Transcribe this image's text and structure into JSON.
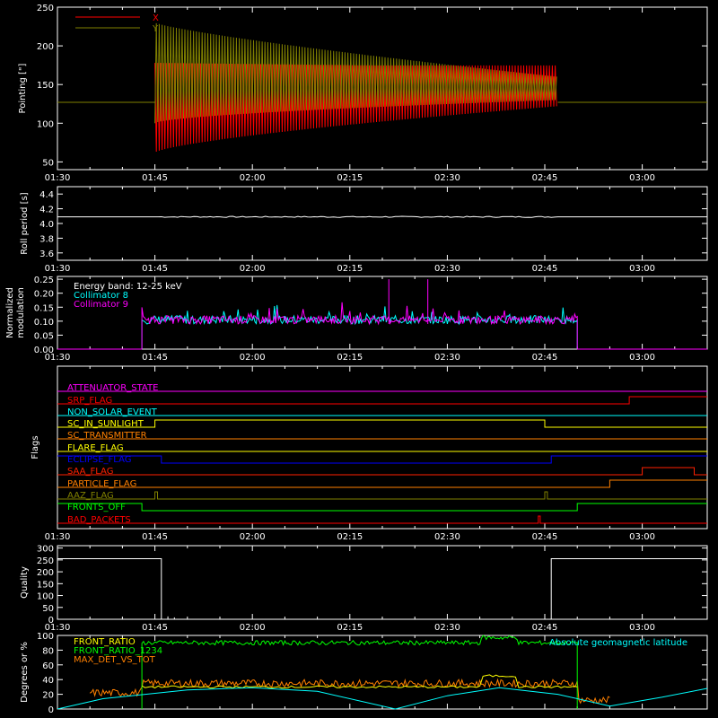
{
  "time_ticks": [
    "01:30",
    "01:45",
    "02:00",
    "02:15",
    "02:30",
    "02:45",
    "03:00"
  ],
  "panels": {
    "pointing": {
      "ylabel": "Pointing [\"]",
      "yticks": [
        50,
        100,
        150,
        200,
        250
      ],
      "legend": [
        {
          "label": "X",
          "color": "#ff0000"
        },
        {
          "label": "Y",
          "color": "#808000"
        }
      ]
    },
    "roll": {
      "ylabel": "Roll period [s]",
      "yticks": [
        "3.6",
        "3.8",
        "4.0",
        "4.2",
        "4.4"
      ]
    },
    "modulation": {
      "ylabel1": "Normalized",
      "ylabel2": "modulation",
      "yticks": [
        "0.00",
        "0.05",
        "0.10",
        "0.15",
        "0.20",
        "0.25"
      ],
      "legend": [
        {
          "label": "Energy band: 12-25 keV",
          "color": "#ffffff"
        },
        {
          "label": "Collimator 8",
          "color": "#00ffff"
        },
        {
          "label": "Collimator 9",
          "color": "#ff00ff"
        }
      ]
    },
    "flags": {
      "ylabel": "Flags",
      "items": [
        {
          "label": "ATTENUATOR_STATE",
          "color": "#ff00ff"
        },
        {
          "label": "SRP_FLAG",
          "color": "#ff0000"
        },
        {
          "label": "NON_SOLAR_EVENT",
          "color": "#00ffff"
        },
        {
          "label": "SC_IN_SUNLIGHT",
          "color": "#ffff00"
        },
        {
          "label": "SC_TRANSMITTER",
          "color": "#ff8000"
        },
        {
          "label": "FLARE_FLAG",
          "color": "#ffff00"
        },
        {
          "label": "ECLIPSE_FLAG",
          "color": "#0000ff"
        },
        {
          "label": "SAA_FLAG",
          "color": "#ff2000"
        },
        {
          "label": "PARTICLE_FLAG",
          "color": "#ff8000"
        },
        {
          "label": "AAZ_FLAG",
          "color": "#808000"
        },
        {
          "label": "FRONTS_OFF",
          "color": "#00ff00"
        },
        {
          "label": "BAD_PACKETS",
          "color": "#ff0000"
        }
      ]
    },
    "quality": {
      "ylabel": "Quality",
      "yticks": [
        0,
        50,
        100,
        150,
        200,
        250,
        300
      ]
    },
    "degrees": {
      "ylabel": "Degrees or %",
      "yticks": [
        0,
        20,
        40,
        60,
        80,
        100
      ],
      "legend": [
        {
          "label": "FRONT_RATIO",
          "color": "#ffff00"
        },
        {
          "label": "FRONT_RATIO_1234",
          "color": "#00ff00"
        },
        {
          "label": "MAX_DET_VS_TOT",
          "color": "#ff8000"
        }
      ],
      "right_label": {
        "label": "Absolute geomagnetic latitude",
        "color": "#00ffff"
      }
    }
  },
  "chart_data": [
    {
      "type": "line",
      "panel": "pointing",
      "x_unit": "UT",
      "xlim": [
        "01:30",
        "03:10"
      ],
      "ylim": [
        40,
        250
      ],
      "ylabel": "Pointing [\"]",
      "series": [
        {
          "name": "X",
          "values_desc": "Flat ~127 before 01:45 and after 02:47; oscillating envelope 01:45-02:47, min ~60-70 max ~180 early, narrowing to ~130-175 late"
        },
        {
          "name": "Y",
          "envelope": [
            [
              "01:45",
              100,
              230
            ],
            [
              "02:00",
              115,
              215
            ],
            [
              "02:15",
              120,
              185
            ],
            [
              "02:30",
              125,
              165
            ],
            [
              "02:47",
              130,
              160
            ]
          ],
          "baseline": 127
        }
      ]
    },
    {
      "type": "line",
      "panel": "roll",
      "xlim": [
        "01:30",
        "03:10"
      ],
      "ylim": [
        3.5,
        4.5
      ],
      "series": [
        {
          "name": "",
          "constant": 4.09
        }
      ]
    },
    {
      "type": "line",
      "panel": "modulation",
      "xlim": [
        "01:30",
        "03:10"
      ],
      "ylim": [
        0.0,
        0.26
      ],
      "series": [
        {
          "name": "Collimator 8",
          "typical": 0.1,
          "range": [
            "01:43",
            "02:50"
          ]
        },
        {
          "name": "Collimator 9",
          "typical": 0.1,
          "peak": 0.25
        }
      ]
    },
    {
      "type": "line",
      "panel": "quality",
      "xlim": [
        "01:30",
        "03:10"
      ],
      "ylim": [
        0,
        300
      ],
      "series": [
        {
          "name": "",
          "segments": [
            [
              "01:30",
              "01:46",
              255
            ],
            [
              "01:46",
              "02:46",
              0
            ],
            [
              "02:46",
              "03:10",
              255
            ]
          ]
        }
      ]
    },
    {
      "type": "line",
      "panel": "degrees",
      "xlim": [
        "01:30",
        "03:10"
      ],
      "ylim": [
        0,
        100
      ],
      "series": [
        {
          "name": "FRONT_RATIO",
          "typical": 30,
          "range": [
            "01:43",
            "02:50"
          ]
        },
        {
          "name": "FRONT_RATIO_1234",
          "typical": 90,
          "range": [
            "01:43",
            "02:50"
          ]
        },
        {
          "name": "MAX_DET_VS_TOT",
          "typical": 35,
          "range": [
            "01:35",
            "02:55"
          ]
        },
        {
          "name": "Absolute geomagnetic latitude",
          "points": [
            [
              "01:30",
              0
            ],
            [
              "01:37",
              14
            ],
            [
              "01:50",
              26
            ],
            [
              "02:00",
              29
            ],
            [
              "02:10",
              24
            ],
            [
              "02:22",
              0
            ],
            [
              "02:30",
              18
            ],
            [
              "02:38",
              29
            ],
            [
              "02:47",
              20
            ],
            [
              "02:55",
              4
            ],
            [
              "03:03",
              16
            ],
            [
              "03:10",
              28
            ]
          ]
        }
      ]
    }
  ]
}
